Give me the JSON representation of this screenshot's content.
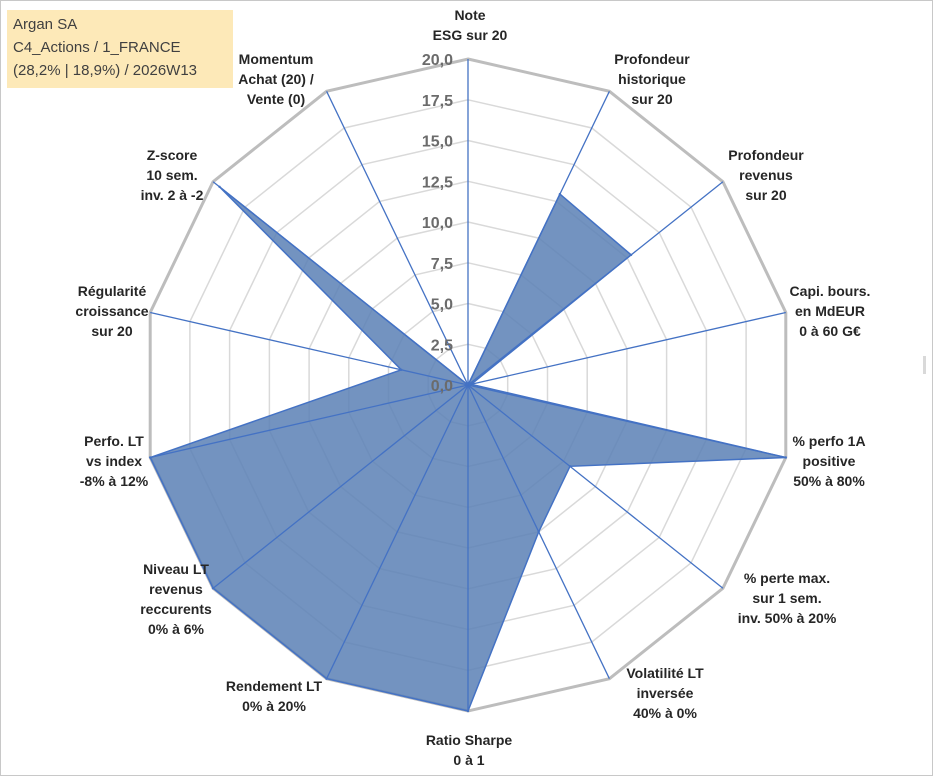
{
  "info": {
    "line1": "Argan SA",
    "line2": "C4_Actions / 1_FRANCE",
    "line3": "(28,2% | 18,9%) / 2026W13"
  },
  "chart_data": {
    "type": "radar",
    "r_range": [
      0,
      20
    ],
    "ticks": [
      "0,0",
      "2,5",
      "5,0",
      "7,5",
      "10,0",
      "12,5",
      "15,0",
      "17,5",
      "20,0"
    ],
    "tick_values": [
      0,
      2.5,
      5,
      7.5,
      10,
      12.5,
      15,
      17.5,
      20
    ],
    "grid": true,
    "axes": [
      {
        "label": [
          "Note",
          "ESG sur 20"
        ],
        "value": 0
      },
      {
        "label": [
          "Profondeur",
          "historique",
          "sur 20"
        ],
        "value": 13
      },
      {
        "label": [
          "Profondeur",
          "revenus",
          "sur 20"
        ],
        "value": 12.8
      },
      {
        "label": [
          "Capi. bours.",
          "en MdEUR",
          "0 à 60 G€"
        ],
        "value": 0.2
      },
      {
        "label": [
          "% perfo 1A",
          "positive",
          "50% à 80%"
        ],
        "value": 20
      },
      {
        "label": [
          "% perte max.",
          "sur 1 sem.",
          "inv. 50% à 20%"
        ],
        "value": 8
      },
      {
        "label": [
          "Volatilité LT",
          "inversée",
          "40% à 0%"
        ],
        "value": 10
      },
      {
        "label": [
          "Ratio Sharpe",
          "0 à 1"
        ],
        "value": 20
      },
      {
        "label": [
          "Rendement LT",
          "0% à 20%"
        ],
        "value": 20
      },
      {
        "label": [
          "Niveau LT",
          "revenus",
          "reccurents",
          "0% à 6%"
        ],
        "value": 20
      },
      {
        "label": [
          "Perfo. LT",
          "vs index",
          "-8% à 12%"
        ],
        "value": 20
      },
      {
        "label": [
          "Régularité",
          "croissance",
          "sur 20"
        ],
        "value": 4.2
      },
      {
        "label": [
          "Z-score",
          "10 sem.",
          "inv. 2 à -2"
        ],
        "value": 19.5
      },
      {
        "label": [
          "Momentum",
          "Achat (20) /",
          "Vente (0)"
        ],
        "value": 0
      }
    ],
    "colors": {
      "fill": "#5b80b5",
      "stroke": "#4472c4",
      "spoke": "#4472c4",
      "grid_outer": "#bdbdbd",
      "grid_inner": "#d9d9d9"
    }
  }
}
